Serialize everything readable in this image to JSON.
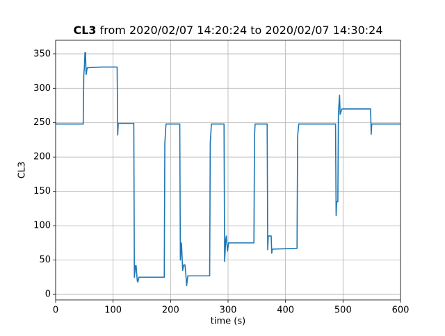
{
  "chart_data": {
    "type": "line",
    "title": {
      "bold": "CL3",
      "rest": "from 2020/02/07 14:20:24 to 2020/02/07 14:30:24"
    },
    "xlabel": "time (s)",
    "ylabel": "CL3",
    "xlim": [
      0,
      600
    ],
    "ylim": [
      -8,
      370
    ],
    "xticks": [
      0,
      100,
      200,
      300,
      400,
      500,
      600
    ],
    "yticks": [
      0,
      50,
      100,
      150,
      200,
      250,
      300,
      350
    ],
    "grid": true,
    "series": [
      {
        "color": "#1f77b4",
        "x": [
          0,
          48,
          49,
          50,
          51,
          52,
          53,
          55,
          80,
          107,
          108,
          109,
          136,
          137,
          139,
          140,
          142,
          143,
          145,
          189,
          190,
          192,
          216,
          217,
          219,
          220,
          221,
          223,
          225,
          226,
          228,
          230,
          268,
          269,
          271,
          293,
          294,
          296,
          297,
          299,
          301,
          303,
          345,
          346,
          347,
          368,
          369,
          370,
          375,
          376,
          377,
          379,
          420,
          421,
          423,
          487,
          488,
          489,
          491,
          492,
          494,
          495,
          498,
          548,
          549,
          550,
          600
        ],
        "values": [
          248,
          248,
          320,
          330,
          352,
          352,
          320,
          330,
          331,
          331,
          232,
          249,
          249,
          25,
          42,
          42,
          20,
          18,
          25,
          25,
          220,
          248,
          248,
          50,
          75,
          55,
          35,
          43,
          43,
          35,
          13,
          27,
          27,
          220,
          248,
          248,
          48,
          80,
          85,
          63,
          75,
          75,
          75,
          230,
          248,
          248,
          65,
          85,
          85,
          60,
          66,
          66,
          67,
          230,
          248,
          248,
          115,
          135,
          135,
          265,
          290,
          262,
          270,
          270,
          233,
          248,
          248
        ]
      }
    ]
  }
}
